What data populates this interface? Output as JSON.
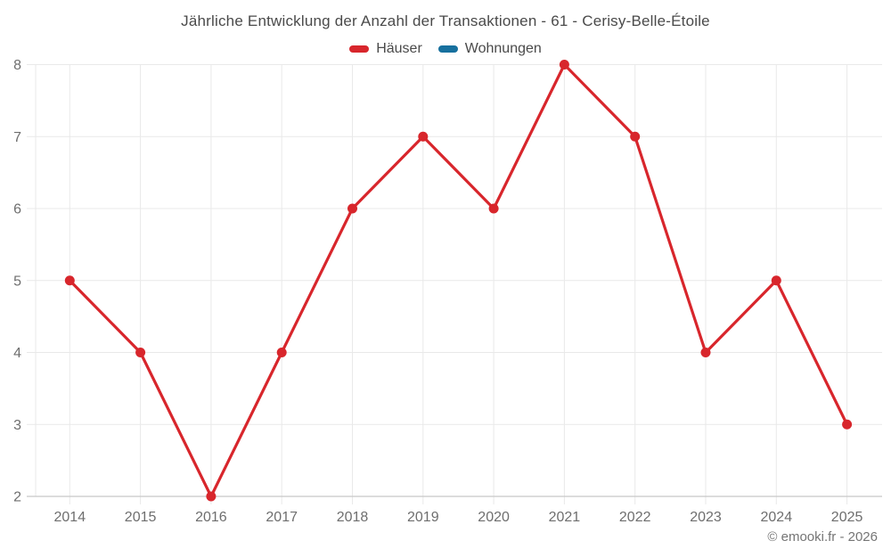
{
  "chart_data": {
    "type": "line",
    "title": "Jährliche Entwicklung der Anzahl der Transaktionen - 61 - Cerisy-Belle-Étoile",
    "categories": [
      "2014",
      "2015",
      "2016",
      "2017",
      "2018",
      "2019",
      "2020",
      "2021",
      "2022",
      "2023",
      "2024",
      "2025"
    ],
    "series": [
      {
        "name": "Häuser",
        "color": "#d8262c",
        "values": [
          5,
          4,
          2,
          4,
          6,
          7,
          6,
          8,
          7,
          4,
          5,
          3
        ]
      },
      {
        "name": "Wohnungen",
        "color": "#17709e",
        "values": []
      }
    ],
    "xlabel": "",
    "ylabel": "",
    "ylim": [
      2,
      8
    ],
    "yticks": [
      2,
      3,
      4,
      5,
      6,
      7,
      8
    ],
    "grid": true,
    "legend_position": "top-center",
    "theme": {
      "grid_color": "#e9e9e9",
      "axis_line_color": "#c8c8c8",
      "tick_label_color": "#6e6e6e",
      "title_color": "#4a4a4a",
      "background": "#ffffff"
    }
  },
  "footer": {
    "copyright": "© emooki.fr - 2026"
  }
}
